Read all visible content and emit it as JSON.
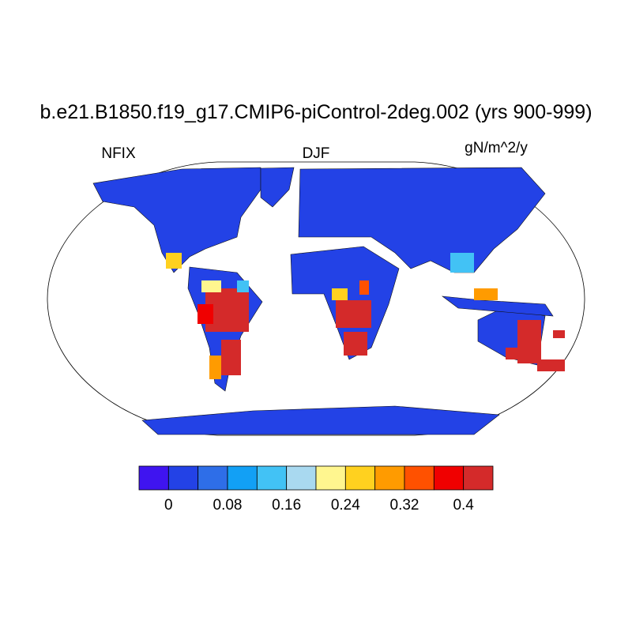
{
  "header": {
    "title": "b.e21.B1850.f19_g17.CMIP6-piControl-2deg.002 (yrs 900-999)",
    "left": "NFIX",
    "center": "DJF",
    "right": "gN/m^2/y"
  },
  "colorbar": {
    "colors": [
      "#3f14f0",
      "#2342e6",
      "#2e6ee8",
      "#12a0f5",
      "#42c2f5",
      "#a9d9f0",
      "#fff68f",
      "#ffd11f",
      "#ff9b00",
      "#ff5100",
      "#f00000",
      "#d42a2a"
    ],
    "lim": [
      -0.04,
      0.44
    ],
    "ticks": [
      0,
      0.08,
      0.16,
      0.24,
      0.32,
      0.4
    ]
  }
}
